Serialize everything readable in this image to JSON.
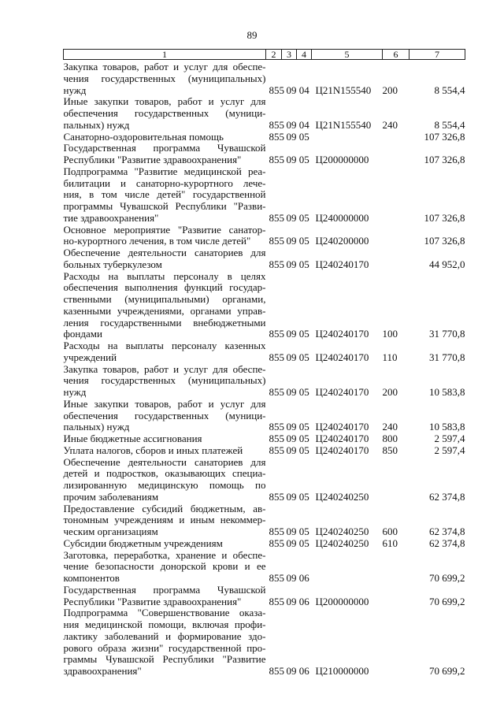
{
  "page_number": "89",
  "header": [
    "1",
    "2",
    "3",
    "4",
    "5",
    "6",
    "7"
  ],
  "rows": [
    {
      "desc": [
        "Закупка товаров, работ и услуг для обеспе-",
        "чения государственных (муниципальных)",
        "нужд"
      ],
      "c2": "855",
      "c34": "09 04",
      "c5": "Ц21N155540",
      "c6": "200",
      "c7": "8 554,4"
    },
    {
      "desc": [
        "Иные закупки товаров, работ и услуг для",
        "обеспечения государственных (муници-",
        "пальных) нужд"
      ],
      "c2": "855",
      "c34": "09 04",
      "c5": "Ц21N155540",
      "c6": "240",
      "c7": "8 554,4"
    },
    {
      "desc": [
        "Санаторно-оздоровительная помощь"
      ],
      "c2": "855",
      "c34": "09 05",
      "c5": "",
      "c6": "",
      "c7": "107 326,8"
    },
    {
      "desc": [
        "Государственная программа Чувашской",
        "Республики \"Развитие здравоохранения\""
      ],
      "c2": "855",
      "c34": "09 05",
      "c5": "Ц200000000",
      "c6": "",
      "c7": "107 326,8"
    },
    {
      "desc": [
        "Подпрограмма \"Развитие медицинской реа-",
        "билитации и санаторно-курортного лече-",
        "ния, в том числе детей\" государственной",
        "программы Чувашской Республики \"Разви-",
        "тие здравоохранения\""
      ],
      "c2": "855",
      "c34": "09 05",
      "c5": "Ц240000000",
      "c6": "",
      "c7": "107 326,8"
    },
    {
      "desc": [
        "Основное мероприятие \"Развитие санатор-",
        "но-курортного лечения, в том числе детей\""
      ],
      "c2": "855",
      "c34": "09 05",
      "c5": "Ц240200000",
      "c6": "",
      "c7": "107 326,8"
    },
    {
      "desc": [
        "Обеспечение деятельности санаториев для",
        "больных туберкулезом"
      ],
      "c2": "855",
      "c34": "09 05",
      "c5": "Ц240240170",
      "c6": "",
      "c7": "44 952,0"
    },
    {
      "desc": [
        "Расходы на выплаты персоналу в целях",
        "обеспечения выполнения функций государ-",
        "ственными (муниципальными) органами,",
        "казенными учреждениями, органами управ-",
        "ления государственными внебюджетными",
        "фондами"
      ],
      "c2": "855",
      "c34": "09 05",
      "c5": "Ц240240170",
      "c6": "100",
      "c7": "31 770,8"
    },
    {
      "desc": [
        "Расходы на выплаты персоналу казенных",
        "учреждений"
      ],
      "c2": "855",
      "c34": "09 05",
      "c5": "Ц240240170",
      "c6": "110",
      "c7": "31 770,8"
    },
    {
      "desc": [
        "Закупка товаров, работ и услуг для обеспе-",
        "чения государственных (муниципальных)",
        "нужд"
      ],
      "c2": "855",
      "c34": "09 05",
      "c5": "Ц240240170",
      "c6": "200",
      "c7": "10 583,8"
    },
    {
      "desc": [
        "Иные закупки товаров, работ и услуг для",
        "обеспечения государственных (муници-",
        "пальных) нужд"
      ],
      "c2": "855",
      "c34": "09 05",
      "c5": "Ц240240170",
      "c6": "240",
      "c7": "10 583,8"
    },
    {
      "desc": [
        "Иные бюджетные ассигнования"
      ],
      "c2": "855",
      "c34": "09 05",
      "c5": "Ц240240170",
      "c6": "800",
      "c7": "2 597,4"
    },
    {
      "desc": [
        "Уплата налогов, сборов и иных платежей"
      ],
      "c2": "855",
      "c34": "09 05",
      "c5": "Ц240240170",
      "c6": "850",
      "c7": "2 597,4"
    },
    {
      "desc": [
        "Обеспечение деятельности санаториев для",
        "детей и подростков, оказывающих специа-",
        "лизированную медицинскую помощь по",
        "прочим заболеваниям"
      ],
      "c2": "855",
      "c34": "09 05",
      "c5": "Ц240240250",
      "c6": "",
      "c7": "62 374,8"
    },
    {
      "desc": [
        "Предоставление субсидий бюджетным, ав-",
        "тономным учреждениям и иным некоммер-",
        "ческим организациям"
      ],
      "c2": "855",
      "c34": "09 05",
      "c5": "Ц240240250",
      "c6": "600",
      "c7": "62 374,8"
    },
    {
      "desc": [
        "Субсидии бюджетным учреждениям"
      ],
      "c2": "855",
      "c34": "09 05",
      "c5": "Ц240240250",
      "c6": "610",
      "c7": "62 374,8"
    },
    {
      "desc": [
        "Заготовка, переработка, хранение и обеспе-",
        "чение безопасности донорской крови и ее",
        "компонентов"
      ],
      "c2": "855",
      "c34": "09 06",
      "c5": "",
      "c6": "",
      "c7": "70 699,2"
    },
    {
      "desc": [
        "Государственная программа Чувашской",
        "Республики \"Развитие здравоохранения\""
      ],
      "c2": "855",
      "c34": "09 06",
      "c5": "Ц200000000",
      "c6": "",
      "c7": "70 699,2"
    },
    {
      "desc": [
        "Подпрограмма \"Совершенствование оказа-",
        "ния медицинской помощи, включая профи-",
        "лактику заболеваний и формирование здо-",
        "рового образа жизни\" государственной про-",
        "граммы Чувашской Республики \"Развитие",
        "здравоохранения\""
      ],
      "c2": "855",
      "c34": "09 06",
      "c5": "Ц210000000",
      "c6": "",
      "c7": "70 699,2"
    }
  ]
}
